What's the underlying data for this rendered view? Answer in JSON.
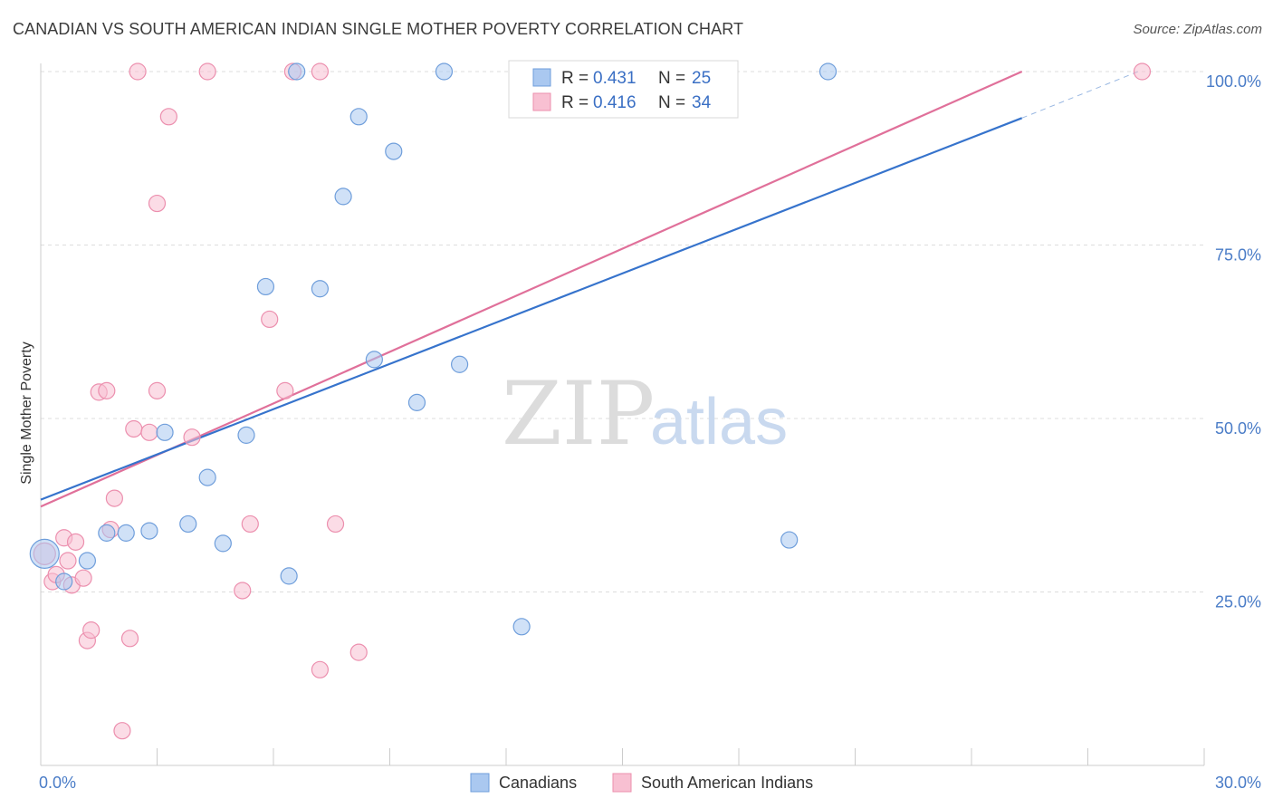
{
  "title": "CANADIAN VS SOUTH AMERICAN INDIAN SINGLE MOTHER POVERTY CORRELATION CHART",
  "source": "Source: ZipAtlas.com",
  "watermark": {
    "zip": "ZIP",
    "atlas": "atlas"
  },
  "colors": {
    "canadians_fill": "#aac8f0",
    "canadians_stroke": "#6f9edb",
    "canadians_line": "#3673cc",
    "sai_fill": "#f8c0d2",
    "sai_stroke": "#ec8fae",
    "sai_line": "#e0709a",
    "grid": "#dddddd",
    "tick_text": "#4a7cc7"
  },
  "legend_top": {
    "rows": [
      {
        "r_label": "R = ",
        "r_value": "0.431",
        "n_label": "N = ",
        "n_value": "25"
      },
      {
        "r_label": "R = ",
        "r_value": "0.416",
        "n_label": "N = ",
        "n_value": "34"
      }
    ]
  },
  "legend_bottom": [
    "Canadians",
    "South American Indians"
  ],
  "chart_data": {
    "type": "scatter",
    "xlabel": "",
    "ylabel": "Single Mother Poverty",
    "xlim": [
      0,
      30
    ],
    "ylim": [
      0,
      103
    ],
    "x_tick_labels": [
      {
        "value": 0,
        "label": "0.0%"
      },
      {
        "value": 30,
        "label": "30.0%"
      }
    ],
    "y_tick_labels": [
      {
        "value": 25,
        "label": "25.0%"
      },
      {
        "value": 50,
        "label": "50.0%"
      },
      {
        "value": 75,
        "label": "75.0%"
      },
      {
        "value": 100,
        "label": "100.0%"
      }
    ],
    "grid": true,
    "legend_placement": "top-center",
    "series": [
      {
        "name": "Canadians",
        "r": 0.431,
        "n": 25,
        "points": [
          [
            0.1,
            30.5,
            16
          ],
          [
            0.6,
            26.5,
            9
          ],
          [
            1.2,
            29.5,
            9
          ],
          [
            1.7,
            33.5,
            9
          ],
          [
            2.2,
            33.5,
            9
          ],
          [
            2.8,
            33.8,
            9
          ],
          [
            3.2,
            48.0,
            9
          ],
          [
            3.8,
            34.8,
            9
          ],
          [
            4.3,
            41.5,
            9
          ],
          [
            4.7,
            32.0,
            9
          ],
          [
            5.3,
            47.6,
            9
          ],
          [
            5.8,
            69.0,
            9
          ],
          [
            6.4,
            27.3,
            9
          ],
          [
            6.6,
            100.0,
            9
          ],
          [
            7.2,
            68.7,
            9
          ],
          [
            7.8,
            82.0,
            9
          ],
          [
            8.2,
            93.5,
            9
          ],
          [
            8.6,
            58.5,
            9
          ],
          [
            9.1,
            88.5,
            9
          ],
          [
            9.7,
            52.3,
            9
          ],
          [
            10.4,
            100.0,
            9
          ],
          [
            10.8,
            57.8,
            9
          ],
          [
            12.4,
            20.0,
            9
          ],
          [
            19.3,
            32.5,
            9
          ],
          [
            20.3,
            100.0,
            9
          ]
        ],
        "trend": {
          "x": [
            0,
            25.3
          ],
          "y": [
            38.3,
            93.3
          ]
        },
        "trend_dashed": {
          "x": [
            25.3,
            28.3
          ],
          "y": [
            93.3,
            100.0
          ]
        }
      },
      {
        "name": "South American Indians",
        "r": 0.416,
        "n": 34,
        "points": [
          [
            0.1,
            30.5,
            12
          ],
          [
            0.3,
            26.5,
            9
          ],
          [
            0.4,
            27.5,
            9
          ],
          [
            0.6,
            32.8,
            9
          ],
          [
            0.7,
            29.5,
            9
          ],
          [
            0.8,
            26.0,
            9
          ],
          [
            0.9,
            32.2,
            9
          ],
          [
            1.1,
            27.0,
            9
          ],
          [
            1.2,
            18.0,
            9
          ],
          [
            1.3,
            19.5,
            9
          ],
          [
            1.5,
            53.8,
            9
          ],
          [
            1.7,
            54.0,
            9
          ],
          [
            1.8,
            34.0,
            9
          ],
          [
            1.9,
            38.5,
            9
          ],
          [
            2.1,
            5.0,
            9
          ],
          [
            2.3,
            18.3,
            9
          ],
          [
            2.4,
            48.5,
            9
          ],
          [
            2.5,
            100.0,
            9
          ],
          [
            2.8,
            48.0,
            9
          ],
          [
            3.0,
            54.0,
            9
          ],
          [
            3.0,
            81.0,
            9
          ],
          [
            3.3,
            93.5,
            9
          ],
          [
            3.9,
            47.3,
            9
          ],
          [
            4.3,
            100.0,
            9
          ],
          [
            5.2,
            25.2,
            9
          ],
          [
            5.4,
            34.8,
            9
          ],
          [
            5.9,
            64.3,
            9
          ],
          [
            6.3,
            54.0,
            9
          ],
          [
            6.5,
            100.0,
            9
          ],
          [
            7.2,
            13.8,
            9
          ],
          [
            7.2,
            100.0,
            9
          ],
          [
            7.6,
            34.8,
            9
          ],
          [
            8.2,
            16.3,
            9
          ],
          [
            28.4,
            100.0,
            9
          ]
        ],
        "trend": {
          "x": [
            0,
            25.3
          ],
          "y": [
            37.3,
            100.0
          ]
        }
      }
    ]
  }
}
